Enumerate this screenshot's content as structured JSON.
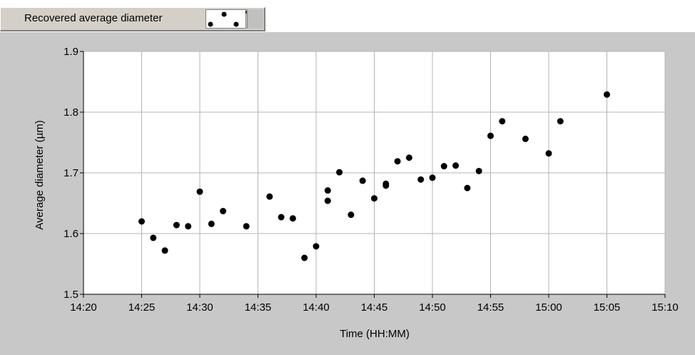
{
  "legend": {
    "label": "Recovered average diameter",
    "swatch_icon": "dot-marker-icon"
  },
  "colors": {
    "panel_background": "#c8c8c8",
    "plot_background": "#ffffff",
    "grid": "#b4b4b4",
    "marker": "#000000"
  },
  "chart_data": {
    "type": "scatter",
    "title": "",
    "xlabel": "Time (HH:MM)",
    "ylabel": "Average diameter  (µm)",
    "xlim": [
      "14:20",
      "15:10"
    ],
    "ylim": [
      1.5,
      1.9
    ],
    "xticks": [
      "14:20",
      "14:25",
      "14:30",
      "14:35",
      "14:40",
      "14:45",
      "14:50",
      "14:55",
      "15:00",
      "15:05",
      "15:10"
    ],
    "yticks": [
      "1.5",
      "1.6",
      "1.7",
      "1.8",
      "1.9"
    ],
    "grid": true,
    "series": [
      {
        "name": "Recovered average diameter",
        "points": [
          {
            "x": "14:25",
            "y": 1.62
          },
          {
            "x": "14:26",
            "y": 1.593
          },
          {
            "x": "14:27",
            "y": 1.572
          },
          {
            "x": "14:28",
            "y": 1.614
          },
          {
            "x": "14:29",
            "y": 1.612
          },
          {
            "x": "14:30",
            "y": 1.669
          },
          {
            "x": "14:31",
            "y": 1.616
          },
          {
            "x": "14:32",
            "y": 1.637
          },
          {
            "x": "14:34",
            "y": 1.612
          },
          {
            "x": "14:36",
            "y": 1.661
          },
          {
            "x": "14:37",
            "y": 1.627
          },
          {
            "x": "14:38",
            "y": 1.625
          },
          {
            "x": "14:39",
            "y": 1.56
          },
          {
            "x": "14:40",
            "y": 1.579
          },
          {
            "x": "14:41",
            "y": 1.671
          },
          {
            "x": "14:41",
            "y": 1.654
          },
          {
            "x": "14:42",
            "y": 1.701
          },
          {
            "x": "14:43",
            "y": 1.631
          },
          {
            "x": "14:44",
            "y": 1.687
          },
          {
            "x": "14:45",
            "y": 1.658
          },
          {
            "x": "14:46",
            "y": 1.679
          },
          {
            "x": "14:46",
            "y": 1.682
          },
          {
            "x": "14:47",
            "y": 1.719
          },
          {
            "x": "14:48",
            "y": 1.725
          },
          {
            "x": "14:49",
            "y": 1.689
          },
          {
            "x": "14:50",
            "y": 1.692
          },
          {
            "x": "14:51",
            "y": 1.711
          },
          {
            "x": "14:52",
            "y": 1.712
          },
          {
            "x": "14:53",
            "y": 1.675
          },
          {
            "x": "14:54",
            "y": 1.703
          },
          {
            "x": "14:55",
            "y": 1.761
          },
          {
            "x": "14:56",
            "y": 1.785
          },
          {
            "x": "14:58",
            "y": 1.756
          },
          {
            "x": "15:00",
            "y": 1.732
          },
          {
            "x": "15:01",
            "y": 1.785
          },
          {
            "x": "15:05",
            "y": 1.829
          }
        ]
      }
    ]
  }
}
